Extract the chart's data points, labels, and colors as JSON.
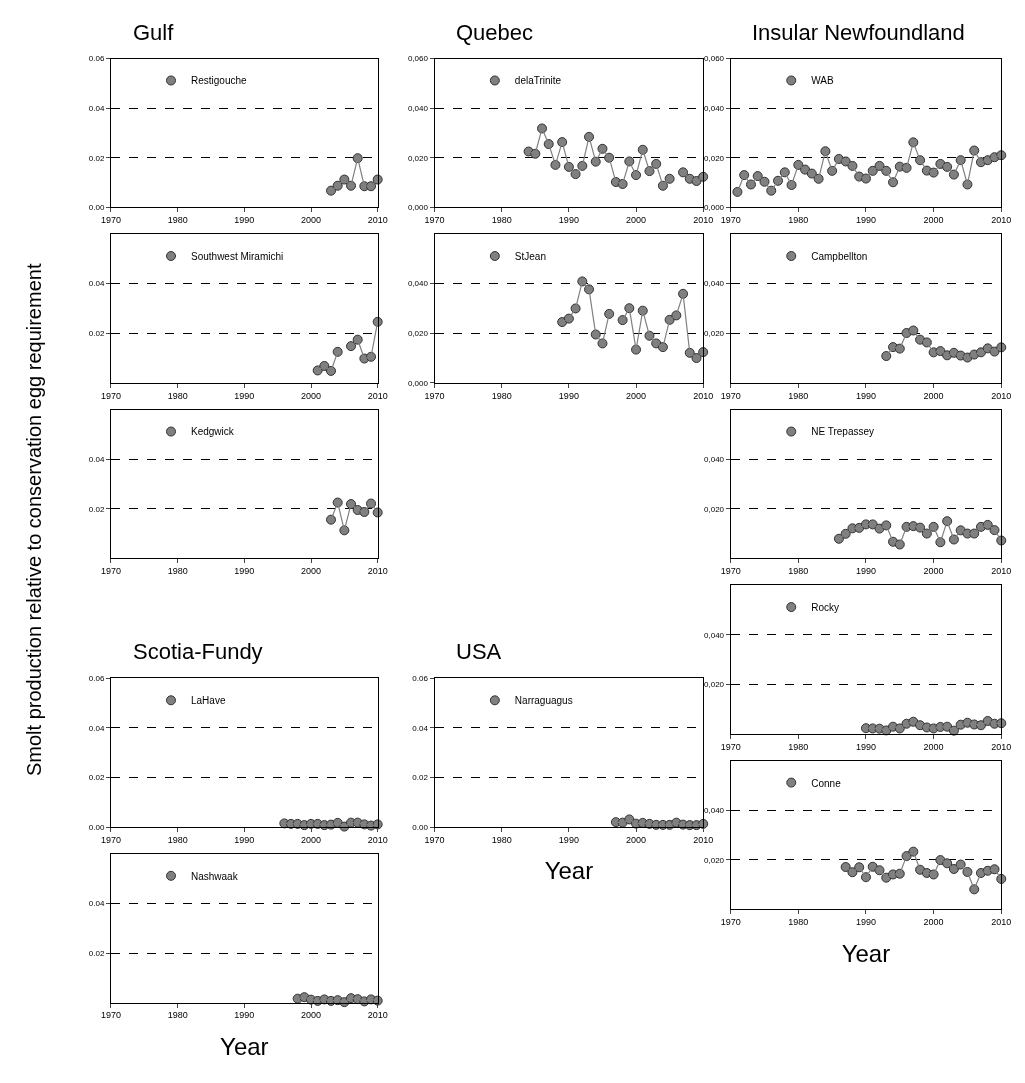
{
  "chart_data": [
    {
      "type": "line",
      "title": "Gulf",
      "x": [
        2003,
        2004,
        2005,
        2006,
        2007,
        2008,
        2009,
        2010
      ],
      "series": [
        {
          "name": "Restigouche",
          "color": "#808080",
          "values": [
            0.0067,
            0.0087,
            0.0112,
            0.0087,
            0.0198,
            0.0085,
            0.0085,
            0.0112
          ]
        }
      ],
      "xlim": [
        1970,
        2010
      ],
      "xticks": [
        1970,
        1980,
        1990,
        2000,
        2010
      ],
      "ylim": [
        0,
        0.06
      ],
      "yticks": [
        {
          "value": 0,
          "label": "0.00"
        },
        0.02,
        0.04,
        0.06
      ],
      "grid": "y",
      "legend": "top left",
      "marker": "circle",
      "line_style": "solid"
    },
    {
      "type": "line",
      "ylabel": "Smolt production relative to conservation egg requirement",
      "x": [
        2001,
        2002,
        2003,
        2004,
        2005,
        2006,
        2007,
        2008,
        2009,
        2010
      ],
      "series": [
        {
          "name": "Southwest Miramichi",
          "color": "#808080",
          "values": [
            0.005,
            0.0068,
            0.0048,
            0.0125,
            null,
            0.0148,
            0.0174,
            0.0098,
            0.0105,
            0.0246
          ]
        }
      ],
      "xlim": [
        1970,
        2010
      ],
      "xticks": [
        1970,
        1980,
        1990,
        2000,
        2010
      ],
      "ylim": [
        0,
        0.06
      ],
      "yticks": [
        0.02,
        0.04
      ],
      "grid": "y",
      "legend": "top left",
      "marker": "circle",
      "line_style": "solid"
    },
    {
      "type": "line",
      "x": [
        2003,
        2004,
        2005,
        2006,
        2007,
        2008,
        2009,
        2010
      ],
      "series": [
        {
          "name": "Kedgwick",
          "color": "#808080",
          "values": [
            0.0156,
            0.0225,
            0.0113,
            0.0219,
            0.0195,
            0.0187,
            0.0221,
            0.0185
          ]
        }
      ],
      "xlim": [
        1970,
        2010
      ],
      "xticks": [
        1970,
        1980,
        1990,
        2000,
        2010
      ],
      "ylim": [
        0,
        0.06
      ],
      "yticks": [
        0.02,
        0.04
      ],
      "grid": "y",
      "legend": "top left",
      "marker": "circle",
      "line_style": "solid"
    },
    {
      "type": "line",
      "title": "Scotia-Fundy",
      "x": [
        1996,
        1997,
        1998,
        1999,
        2000,
        2001,
        2002,
        2003,
        2004,
        2005,
        2006,
        2007,
        2008,
        2009,
        2010
      ],
      "series": [
        {
          "name": "LaHave",
          "color": "#808080",
          "values": [
            0.0015,
            0.0013,
            0.0013,
            0.0008,
            0.0013,
            0.0013,
            0.0008,
            0.001,
            0.0017,
            0.0002,
            0.0018,
            0.0018,
            0.0011,
            0.0006,
            0.0011
          ]
        }
      ],
      "xlim": [
        1970,
        2010
      ],
      "xticks": [
        1970,
        1980,
        1990,
        2000,
        2010
      ],
      "ylim": [
        0,
        0.06
      ],
      "yticks": [
        {
          "value": 0,
          "label": "0.00"
        },
        0.02,
        0.04,
        0.06
      ],
      "grid": "y",
      "legend": "top left",
      "marker": "circle",
      "line_style": "solid"
    },
    {
      "type": "line",
      "xlabel": "Year",
      "x": [
        1998,
        1999,
        2000,
        2001,
        2002,
        2003,
        2004,
        2005,
        2006,
        2007,
        2008,
        2009,
        2010
      ],
      "series": [
        {
          "name": "Nashwaak",
          "color": "#808080",
          "values": [
            0.0016,
            0.0022,
            0.0012,
            0.0007,
            0.0013,
            0.0007,
            0.001,
            0.0002,
            0.0018,
            0.0014,
            0.0005,
            0.0013,
            0.0008
          ]
        }
      ],
      "xlim": [
        1970,
        2010
      ],
      "xticks": [
        1970,
        1980,
        1990,
        2000,
        2010
      ],
      "ylim": [
        0,
        0.06
      ],
      "yticks": [
        0.02,
        0.04
      ],
      "grid": "y",
      "legend": "top left",
      "marker": "circle",
      "line_style": "solid"
    },
    {
      "type": "line",
      "title": "Quebec",
      "x": [
        1984,
        1985,
        1986,
        1987,
        1988,
        1989,
        1990,
        1991,
        1992,
        1993,
        1994,
        1995,
        1996,
        1997,
        1998,
        1999,
        2000,
        2001,
        2002,
        2003,
        2004,
        2005,
        2006,
        2007,
        2008,
        2009,
        2010
      ],
      "series": [
        {
          "name": "delaTrinite",
          "color": "#808080",
          "values": [
            0.0225,
            0.0216,
            0.0318,
            0.0255,
            0.0171,
            0.0263,
            0.0163,
            0.0134,
            0.0167,
            0.0284,
            0.0184,
            0.0236,
            0.02,
            0.0102,
            0.0094,
            0.0185,
            0.013,
            0.0232,
            0.0146,
            0.0175,
            0.0087,
            0.0115,
            null,
            0.0141,
            0.0115,
            0.0106,
            0.0123
          ]
        }
      ],
      "xlim": [
        1970,
        2010
      ],
      "xticks": [
        1970,
        1980,
        1990,
        2000,
        2010
      ],
      "ylim": [
        0,
        0.06
      ],
      "yticks": [
        {
          "value": 0,
          "label": "0,000"
        },
        {
          "value": 0.02,
          "label": "0,020"
        },
        {
          "value": 0.04,
          "label": "0,040"
        },
        {
          "value": 0.06,
          "label": "0,060"
        }
      ],
      "grid": "y",
      "legend": "top left",
      "marker": "circle",
      "line_style": "solid"
    },
    {
      "type": "line",
      "x": [
        1989,
        1990,
        1991,
        1992,
        1993,
        1994,
        1995,
        1996,
        1997,
        1998,
        1999,
        2000,
        2001,
        2002,
        2003,
        2004,
        2005,
        2006,
        2007,
        2008,
        2009,
        2010
      ],
      "series": [
        {
          "name": "StJean",
          "color": "#808080",
          "values": [
            0.0245,
            0.0259,
            0.03,
            0.0409,
            0.0377,
            0.0195,
            0.0159,
            0.0278,
            null,
            0.0253,
            0.0301,
            0.0134,
            0.0291,
            0.019,
            0.0159,
            0.0144,
            0.0254,
            0.0272,
            0.0359,
            0.0121,
            0.01,
            0.0124
          ]
        }
      ],
      "xlim": [
        1970,
        2010
      ],
      "xticks": [
        1970,
        1980,
        1990,
        2000,
        2010
      ],
      "ylim": [
        0,
        0.06
      ],
      "yticks": [
        {
          "value": 0,
          "label": "0,000"
        },
        {
          "value": 0.02,
          "label": "0,020"
        },
        {
          "value": 0.04,
          "label": "0,040"
        }
      ],
      "grid": "y",
      "legend": "top left",
      "marker": "circle",
      "line_style": "solid"
    },
    {
      "type": "line",
      "title": "USA",
      "xlabel": "Year",
      "x": [
        1997,
        1998,
        1999,
        2000,
        2001,
        2002,
        2003,
        2004,
        2005,
        2006,
        2007,
        2008,
        2009,
        2010
      ],
      "series": [
        {
          "name": "Narraguagus",
          "color": "#808080",
          "values": [
            0.002,
            0.0018,
            0.0031,
            0.0014,
            0.0017,
            0.0013,
            0.0009,
            0.0009,
            0.0009,
            0.0018,
            0.001,
            0.0008,
            0.0008,
            0.0013
          ]
        }
      ],
      "xlim": [
        1970,
        2010
      ],
      "xticks": [
        1970,
        1980,
        1990,
        2000,
        2010
      ],
      "ylim": [
        0,
        0.06
      ],
      "yticks": [
        {
          "value": 0,
          "label": "0.00"
        },
        0.02,
        0.04,
        0.06
      ],
      "grid": "y",
      "legend": "top left",
      "marker": "circle",
      "line_style": "solid"
    },
    {
      "type": "line",
      "title": "Insular Newfoundland",
      "x": [
        1971,
        1972,
        1973,
        1974,
        1975,
        1976,
        1977,
        1978,
        1979,
        1980,
        1981,
        1982,
        1983,
        1984,
        1985,
        1986,
        1987,
        1988,
        1989,
        1990,
        1991,
        1992,
        1993,
        1994,
        1995,
        1996,
        1997,
        1998,
        1999,
        2000,
        2001,
        2002,
        2003,
        2004,
        2005,
        2006,
        2007,
        2008,
        2009,
        2010
      ],
      "series": [
        {
          "name": "WAB",
          "color": "#808080",
          "values": [
            0.0062,
            0.013,
            0.0092,
            0.0126,
            0.0103,
            0.0067,
            0.0107,
            0.0141,
            0.009,
            0.0171,
            0.0152,
            0.0136,
            0.0115,
            0.0226,
            0.0147,
            0.0195,
            0.0185,
            0.0167,
            0.0124,
            0.0116,
            0.0147,
            0.0167,
            0.0147,
            0.0101,
            0.0164,
            0.0159,
            0.0262,
            0.019,
            0.0148,
            0.014,
            0.0175,
            0.0163,
            0.0132,
            0.019,
            0.0092,
            0.0229,
            0.0182,
            0.019,
            0.0202,
            0.021
          ]
        }
      ],
      "xlim": [
        1970,
        2010
      ],
      "xticks": [
        1970,
        1980,
        1990,
        2000,
        2010
      ],
      "ylim": [
        0,
        0.06
      ],
      "yticks": [
        {
          "value": 0,
          "label": "0,000"
        },
        {
          "value": 0.02,
          "label": "0,020"
        },
        {
          "value": 0.04,
          "label": "0,040"
        },
        {
          "value": 0.06,
          "label": "0,060"
        }
      ],
      "grid": "y",
      "legend": "top left",
      "marker": "circle",
      "line_style": "solid"
    },
    {
      "type": "line",
      "x": [
        1993,
        1994,
        1995,
        1996,
        1997,
        1998,
        1999,
        2000,
        2001,
        2002,
        2003,
        2004,
        2005,
        2006,
        2007,
        2008,
        2009,
        2010
      ],
      "series": [
        {
          "name": "Campbellton",
          "color": "#808080",
          "values": [
            0.0108,
            0.0144,
            0.0138,
            0.0201,
            0.0211,
            0.0174,
            0.0163,
            0.0123,
            0.0128,
            0.0111,
            0.0121,
            0.011,
            0.0102,
            0.0114,
            0.0123,
            0.0139,
            0.0126,
            0.0143
          ]
        }
      ],
      "xlim": [
        1970,
        2010
      ],
      "xticks": [
        1970,
        1980,
        1990,
        2000,
        2010
      ],
      "ylim": [
        0,
        0.06
      ],
      "yticks": [
        {
          "value": 0.02,
          "label": "0,020"
        },
        {
          "value": 0.04,
          "label": "0,040"
        }
      ],
      "grid": "y",
      "legend": "top left",
      "marker": "circle",
      "line_style": "solid"
    },
    {
      "type": "line",
      "x": [
        1986,
        1987,
        1988,
        1989,
        1990,
        1991,
        1992,
        1993,
        1994,
        1995,
        1996,
        1997,
        1998,
        1999,
        2000,
        2001,
        2002,
        2003,
        2004,
        2005,
        2006,
        2007,
        2008,
        2009,
        2010
      ],
      "series": [
        {
          "name": "NE Trepassey",
          "color": "#808080",
          "values": [
            0.0079,
            0.0099,
            0.0121,
            0.0123,
            0.0137,
            0.0137,
            0.012,
            0.0133,
            0.0067,
            0.0056,
            0.0127,
            0.013,
            0.0124,
            0.01,
            0.0127,
            0.0065,
            0.015,
            0.0076,
            0.0113,
            0.01,
            0.01,
            0.0127,
            0.0135,
            0.0114,
            0.0072
          ]
        }
      ],
      "xlim": [
        1970,
        2010
      ],
      "xticks": [
        1970,
        1980,
        1990,
        2000,
        2010
      ],
      "ylim": [
        0,
        0.06
      ],
      "yticks": [
        {
          "value": 0.02,
          "label": "0,020"
        },
        {
          "value": 0.04,
          "label": "0,040"
        }
      ],
      "grid": "y",
      "legend": "top left",
      "marker": "circle",
      "line_style": "solid"
    },
    {
      "type": "line",
      "x": [
        1990,
        1991,
        1992,
        1993,
        1994,
        1995,
        1996,
        1997,
        1998,
        1999,
        2000,
        2001,
        2002,
        2003,
        2004,
        2005,
        2006,
        2007,
        2008,
        2009,
        2010
      ],
      "series": [
        {
          "name": "Rocky",
          "color": "#808080",
          "values": [
            0.0023,
            0.0022,
            0.0021,
            0.0014,
            0.0029,
            0.0022,
            0.0041,
            0.0049,
            0.0035,
            0.0026,
            0.0022,
            0.0028,
            0.0029,
            0.0013,
            0.0037,
            0.0045,
            0.0038,
            0.0035,
            0.0052,
            0.0041,
            0.0043
          ]
        }
      ],
      "xlim": [
        1970,
        2010
      ],
      "xticks": [
        1970,
        1980,
        1990,
        2000,
        2010
      ],
      "ylim": [
        0,
        0.06
      ],
      "yticks": [
        {
          "value": 0.02,
          "label": "0,020"
        },
        {
          "value": 0.04,
          "label": "0,040"
        }
      ],
      "grid": "y",
      "legend": "top left",
      "marker": "circle",
      "line_style": "solid"
    },
    {
      "type": "line",
      "xlabel": "Year",
      "x": [
        1987,
        1988,
        1989,
        1990,
        1991,
        1992,
        1993,
        1994,
        1995,
        1996,
        1997,
        1998,
        1999,
        2000,
        2001,
        2002,
        2003,
        2004,
        2005,
        2006,
        2007,
        2008,
        2009,
        2010
      ],
      "series": [
        {
          "name": "Conne",
          "color": "#808080",
          "values": [
            0.0171,
            0.015,
            0.017,
            0.013,
            0.0172,
            0.0158,
            0.0128,
            0.0141,
            0.0144,
            0.0215,
            0.0233,
            0.016,
            0.0147,
            0.0141,
            0.0199,
            0.0186,
            0.0163,
            0.0181,
            0.0151,
            0.0081,
            0.0147,
            0.0156,
            0.0162,
            0.0123
          ]
        }
      ],
      "xlim": [
        1970,
        2010
      ],
      "xticks": [
        1970,
        1980,
        1990,
        2000,
        2010
      ],
      "ylim": [
        0,
        0.06
      ],
      "yticks": [
        {
          "value": 0.02,
          "label": "0,020"
        },
        {
          "value": 0.04,
          "label": "0,040"
        }
      ],
      "grid": "y",
      "legend": "top left",
      "marker": "circle",
      "line_style": "solid"
    }
  ]
}
